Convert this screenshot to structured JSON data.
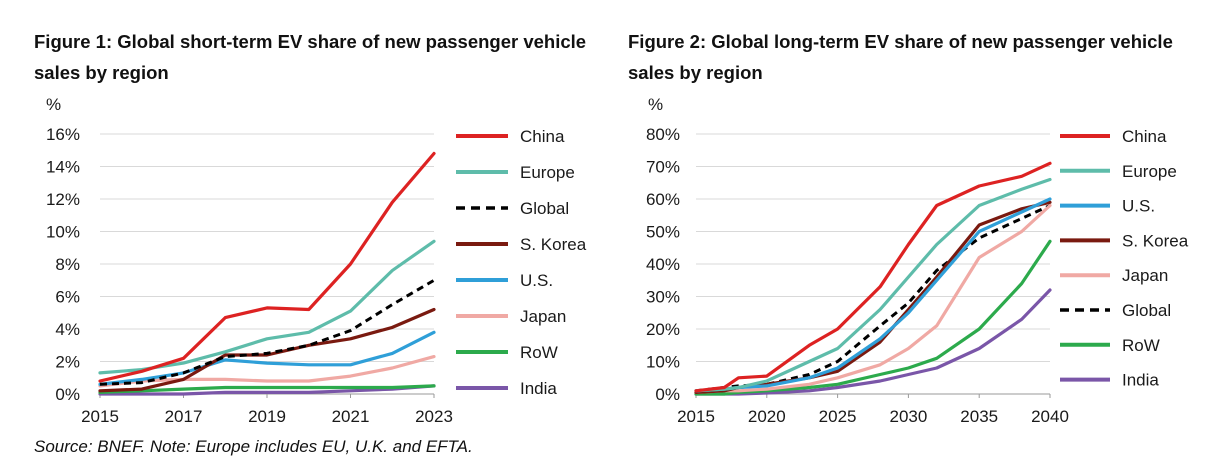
{
  "colors": {
    "China": "#dd2222",
    "Europe": "#5ebcaa",
    "Global": "#000000",
    "S. Korea": "#7a1a10",
    "U.S.": "#2f9fd8",
    "Japan": "#f0a9a4",
    "RoW": "#2caa4c",
    "India": "#7a56a8"
  },
  "source": "Source: BNEF. Note: Europe includes EU, U.K. and EFTA.",
  "chart_data": [
    {
      "type": "line",
      "title": "Figure 1: Global short-term EV share of new passenger vehicle sales by region",
      "ylabel": "%",
      "ylim": [
        0,
        16
      ],
      "yticks": [
        "0%",
        "2%",
        "4%",
        "6%",
        "8%",
        "10%",
        "12%",
        "14%",
        "16%"
      ],
      "xlim": [
        2015,
        2023
      ],
      "xticks": [
        "2015",
        "2017",
        "2019",
        "2021",
        "2023"
      ],
      "grid": true,
      "legend_position": "right",
      "x": [
        2015,
        2016,
        2017,
        2018,
        2019,
        2020,
        2021,
        2022,
        2023
      ],
      "series": [
        {
          "name": "China",
          "values": [
            0.8,
            1.4,
            2.2,
            4.7,
            5.3,
            5.2,
            8.0,
            11.8,
            14.8
          ]
        },
        {
          "name": "Europe",
          "values": [
            1.3,
            1.5,
            1.9,
            2.6,
            3.4,
            3.8,
            5.1,
            7.6,
            9.4
          ]
        },
        {
          "name": "Global",
          "values": [
            0.6,
            0.7,
            1.3,
            2.3,
            2.5,
            3.0,
            3.9,
            5.5,
            7.0
          ],
          "dashed": true
        },
        {
          "name": "S. Korea",
          "values": [
            0.2,
            0.3,
            0.9,
            2.4,
            2.4,
            3.0,
            3.4,
            4.1,
            5.2
          ]
        },
        {
          "name": "U.S.",
          "values": [
            0.6,
            0.9,
            1.3,
            2.1,
            1.9,
            1.8,
            1.8,
            2.5,
            3.8
          ]
        },
        {
          "name": "Japan",
          "values": [
            0.5,
            0.8,
            0.9,
            0.9,
            0.8,
            0.8,
            1.1,
            1.6,
            2.3
          ]
        },
        {
          "name": "RoW",
          "values": [
            0.1,
            0.2,
            0.3,
            0.4,
            0.4,
            0.4,
            0.4,
            0.4,
            0.5
          ]
        },
        {
          "name": "India",
          "values": [
            0.0,
            0.0,
            0.0,
            0.1,
            0.1,
            0.1,
            0.2,
            0.3,
            0.5
          ]
        }
      ]
    },
    {
      "type": "line",
      "title": "Figure 2: Global long-term EV share of new passenger vehicle sales by region",
      "ylabel": "%",
      "ylim": [
        0,
        80
      ],
      "yticks": [
        "0%",
        "10%",
        "20%",
        "30%",
        "40%",
        "50%",
        "60%",
        "70%",
        "80%"
      ],
      "xlim": [
        2015,
        2040
      ],
      "xticks": [
        "2015",
        "2020",
        "2025",
        "2030",
        "2035",
        "2040"
      ],
      "grid": true,
      "legend_position": "right",
      "x": [
        2015,
        2017,
        2018,
        2020,
        2023,
        2025,
        2028,
        2030,
        2032,
        2035,
        2038,
        2040
      ],
      "series": [
        {
          "name": "China",
          "values": [
            1,
            2,
            5,
            5.5,
            15,
            20,
            33,
            46,
            58,
            64,
            67,
            71
          ]
        },
        {
          "name": "Europe",
          "values": [
            1,
            1.5,
            2,
            4,
            10,
            14,
            26,
            36,
            46,
            58,
            63,
            66
          ]
        },
        {
          "name": "U.S.",
          "values": [
            1,
            1.5,
            2,
            2.5,
            5,
            8,
            17,
            25,
            35,
            50,
            56,
            60
          ]
        },
        {
          "name": "S. Korea",
          "values": [
            0.5,
            1,
            2,
            3,
            5,
            7,
            16,
            26,
            36,
            52,
            57,
            59
          ]
        },
        {
          "name": "Japan",
          "values": [
            0.5,
            1,
            1,
            1.5,
            3,
            5,
            9,
            14,
            21,
            42,
            50,
            58
          ]
        },
        {
          "name": "Global",
          "values": [
            1,
            2,
            2.5,
            3,
            6,
            10,
            21,
            28,
            38,
            48,
            54,
            58
          ],
          "dashed": true
        },
        {
          "name": "RoW",
          "values": [
            0,
            0,
            0.5,
            1,
            2,
            3,
            6,
            8,
            11,
            20,
            34,
            47
          ]
        },
        {
          "name": "India",
          "values": [
            0,
            0,
            0,
            0.3,
            1,
            2,
            4,
            6,
            8,
            14,
            23,
            32
          ]
        }
      ]
    }
  ]
}
